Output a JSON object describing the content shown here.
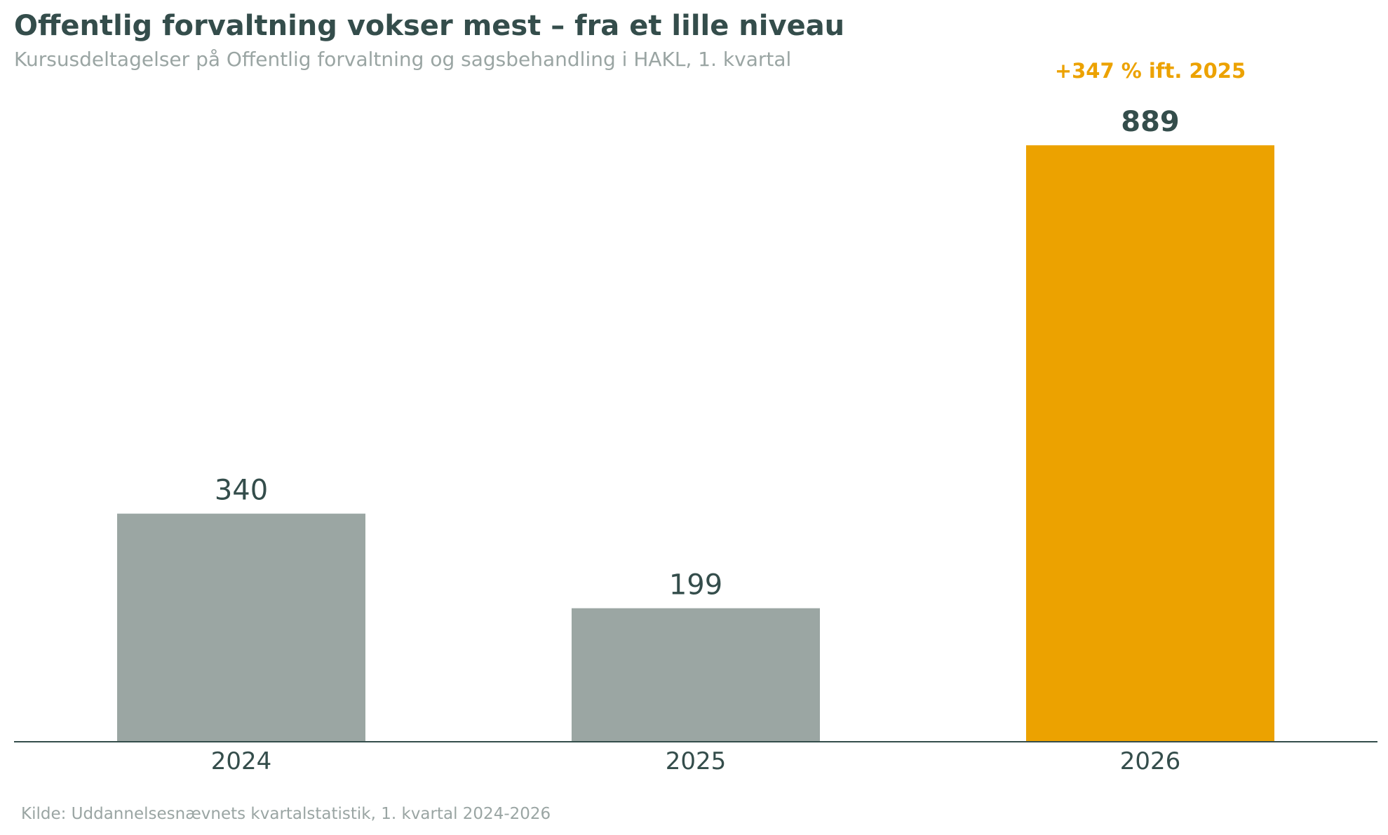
{
  "title": "Offentlig forvaltning vokser mest – fra et lille niveau",
  "subtitle": "Kursusdeltagelser på Offentlig forvaltning og sagsbehandling i HAKL, 1. kvartal",
  "source": "Kilde: Uddannelsesnævnets kvartalstatistik, 1. kvartal 2024-2026",
  "colors": {
    "base_bar": "#9ba6a3",
    "highlight_bar": "#eca200",
    "text_dark": "#344d4b",
    "axis": "#344d4b"
  },
  "chart_data": {
    "type": "bar",
    "categories": [
      "2024",
      "2025",
      "2026"
    ],
    "values": [
      340,
      199,
      889
    ],
    "data_labels": [
      "340",
      "199",
      "889"
    ],
    "highlight_index": 2,
    "annotation": {
      "category": "2026",
      "text": "+347 % ift. 2025"
    },
    "ylim": [
      0,
      1000
    ],
    "grid": false,
    "legend": "none",
    "xlabel": "",
    "ylabel": ""
  }
}
